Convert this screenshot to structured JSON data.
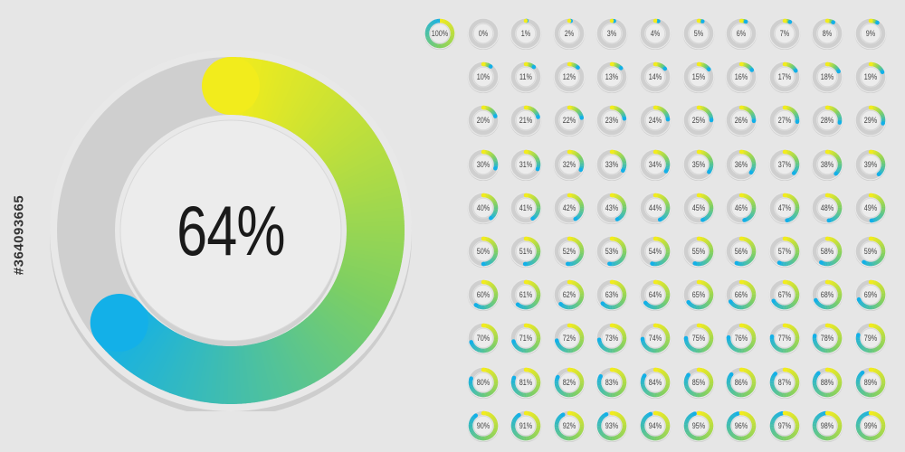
{
  "main_chart": {
    "percent": 64,
    "label": "64%"
  },
  "colors": {
    "background": "#e6e6e6",
    "track": "#cfcfcf",
    "gradient_start_yellow": "#f2ec1c",
    "gradient_mid_green": "#7dcf63",
    "gradient_end_blue": "#13b0e8",
    "inner_disc": "#ececec",
    "label_text": "#1a1a1a"
  },
  "side_text": "#364093665",
  "mini_charts": [
    {
      "percent": 100,
      "label": "100%"
    },
    {
      "percent": 0,
      "label": "0%"
    },
    {
      "percent": 1,
      "label": "1%"
    },
    {
      "percent": 2,
      "label": "2%"
    },
    {
      "percent": 3,
      "label": "3%"
    },
    {
      "percent": 4,
      "label": "4%"
    },
    {
      "percent": 5,
      "label": "5%"
    },
    {
      "percent": 6,
      "label": "6%"
    },
    {
      "percent": 7,
      "label": "7%"
    },
    {
      "percent": 8,
      "label": "8%"
    },
    {
      "percent": 9,
      "label": "9%"
    },
    {
      "percent": 10,
      "label": "10%"
    },
    {
      "percent": 11,
      "label": "11%"
    },
    {
      "percent": 12,
      "label": "12%"
    },
    {
      "percent": 13,
      "label": "13%"
    },
    {
      "percent": 14,
      "label": "14%"
    },
    {
      "percent": 15,
      "label": "15%"
    },
    {
      "percent": 16,
      "label": "16%"
    },
    {
      "percent": 17,
      "label": "17%"
    },
    {
      "percent": 18,
      "label": "18%"
    },
    {
      "percent": 19,
      "label": "19%"
    },
    {
      "percent": 20,
      "label": "20%"
    },
    {
      "percent": 21,
      "label": "21%"
    },
    {
      "percent": 22,
      "label": "22%"
    },
    {
      "percent": 23,
      "label": "23%"
    },
    {
      "percent": 24,
      "label": "24%"
    },
    {
      "percent": 25,
      "label": "25%"
    },
    {
      "percent": 26,
      "label": "26%"
    },
    {
      "percent": 27,
      "label": "27%"
    },
    {
      "percent": 28,
      "label": "28%"
    },
    {
      "percent": 29,
      "label": "29%"
    },
    {
      "percent": 30,
      "label": "30%"
    },
    {
      "percent": 31,
      "label": "31%"
    },
    {
      "percent": 32,
      "label": "32%"
    },
    {
      "percent": 33,
      "label": "33%"
    },
    {
      "percent": 34,
      "label": "34%"
    },
    {
      "percent": 35,
      "label": "35%"
    },
    {
      "percent": 36,
      "label": "36%"
    },
    {
      "percent": 37,
      "label": "37%"
    },
    {
      "percent": 38,
      "label": "38%"
    },
    {
      "percent": 39,
      "label": "39%"
    },
    {
      "percent": 40,
      "label": "40%"
    },
    {
      "percent": 41,
      "label": "41%"
    },
    {
      "percent": 42,
      "label": "42%"
    },
    {
      "percent": 43,
      "label": "43%"
    },
    {
      "percent": 44,
      "label": "44%"
    },
    {
      "percent": 45,
      "label": "45%"
    },
    {
      "percent": 46,
      "label": "46%"
    },
    {
      "percent": 47,
      "label": "47%"
    },
    {
      "percent": 48,
      "label": "48%"
    },
    {
      "percent": 49,
      "label": "49%"
    },
    {
      "percent": 50,
      "label": "50%"
    },
    {
      "percent": 51,
      "label": "51%"
    },
    {
      "percent": 52,
      "label": "52%"
    },
    {
      "percent": 53,
      "label": "53%"
    },
    {
      "percent": 54,
      "label": "54%"
    },
    {
      "percent": 55,
      "label": "55%"
    },
    {
      "percent": 56,
      "label": "56%"
    },
    {
      "percent": 57,
      "label": "57%"
    },
    {
      "percent": 58,
      "label": "58%"
    },
    {
      "percent": 59,
      "label": "59%"
    },
    {
      "percent": 60,
      "label": "60%"
    },
    {
      "percent": 61,
      "label": "61%"
    },
    {
      "percent": 62,
      "label": "62%"
    },
    {
      "percent": 63,
      "label": "63%"
    },
    {
      "percent": 64,
      "label": "64%"
    },
    {
      "percent": 65,
      "label": "65%"
    },
    {
      "percent": 66,
      "label": "66%"
    },
    {
      "percent": 67,
      "label": "67%"
    },
    {
      "percent": 68,
      "label": "68%"
    },
    {
      "percent": 69,
      "label": "69%"
    },
    {
      "percent": 70,
      "label": "70%"
    },
    {
      "percent": 71,
      "label": "71%"
    },
    {
      "percent": 72,
      "label": "72%"
    },
    {
      "percent": 73,
      "label": "73%"
    },
    {
      "percent": 74,
      "label": "74%"
    },
    {
      "percent": 75,
      "label": "75%"
    },
    {
      "percent": 76,
      "label": "76%"
    },
    {
      "percent": 77,
      "label": "77%"
    },
    {
      "percent": 78,
      "label": "78%"
    },
    {
      "percent": 79,
      "label": "79%"
    },
    {
      "percent": 80,
      "label": "80%"
    },
    {
      "percent": 81,
      "label": "81%"
    },
    {
      "percent": 82,
      "label": "82%"
    },
    {
      "percent": 83,
      "label": "83%"
    },
    {
      "percent": 84,
      "label": "84%"
    },
    {
      "percent": 85,
      "label": "85%"
    },
    {
      "percent": 86,
      "label": "86%"
    },
    {
      "percent": 87,
      "label": "87%"
    },
    {
      "percent": 88,
      "label": "88%"
    },
    {
      "percent": 89,
      "label": "89%"
    },
    {
      "percent": 90,
      "label": "90%"
    },
    {
      "percent": 91,
      "label": "91%"
    },
    {
      "percent": 92,
      "label": "92%"
    },
    {
      "percent": 93,
      "label": "93%"
    },
    {
      "percent": 94,
      "label": "94%"
    },
    {
      "percent": 95,
      "label": "95%"
    },
    {
      "percent": 96,
      "label": "96%"
    },
    {
      "percent": 97,
      "label": "97%"
    },
    {
      "percent": 98,
      "label": "98%"
    },
    {
      "percent": 99,
      "label": "99%"
    }
  ]
}
